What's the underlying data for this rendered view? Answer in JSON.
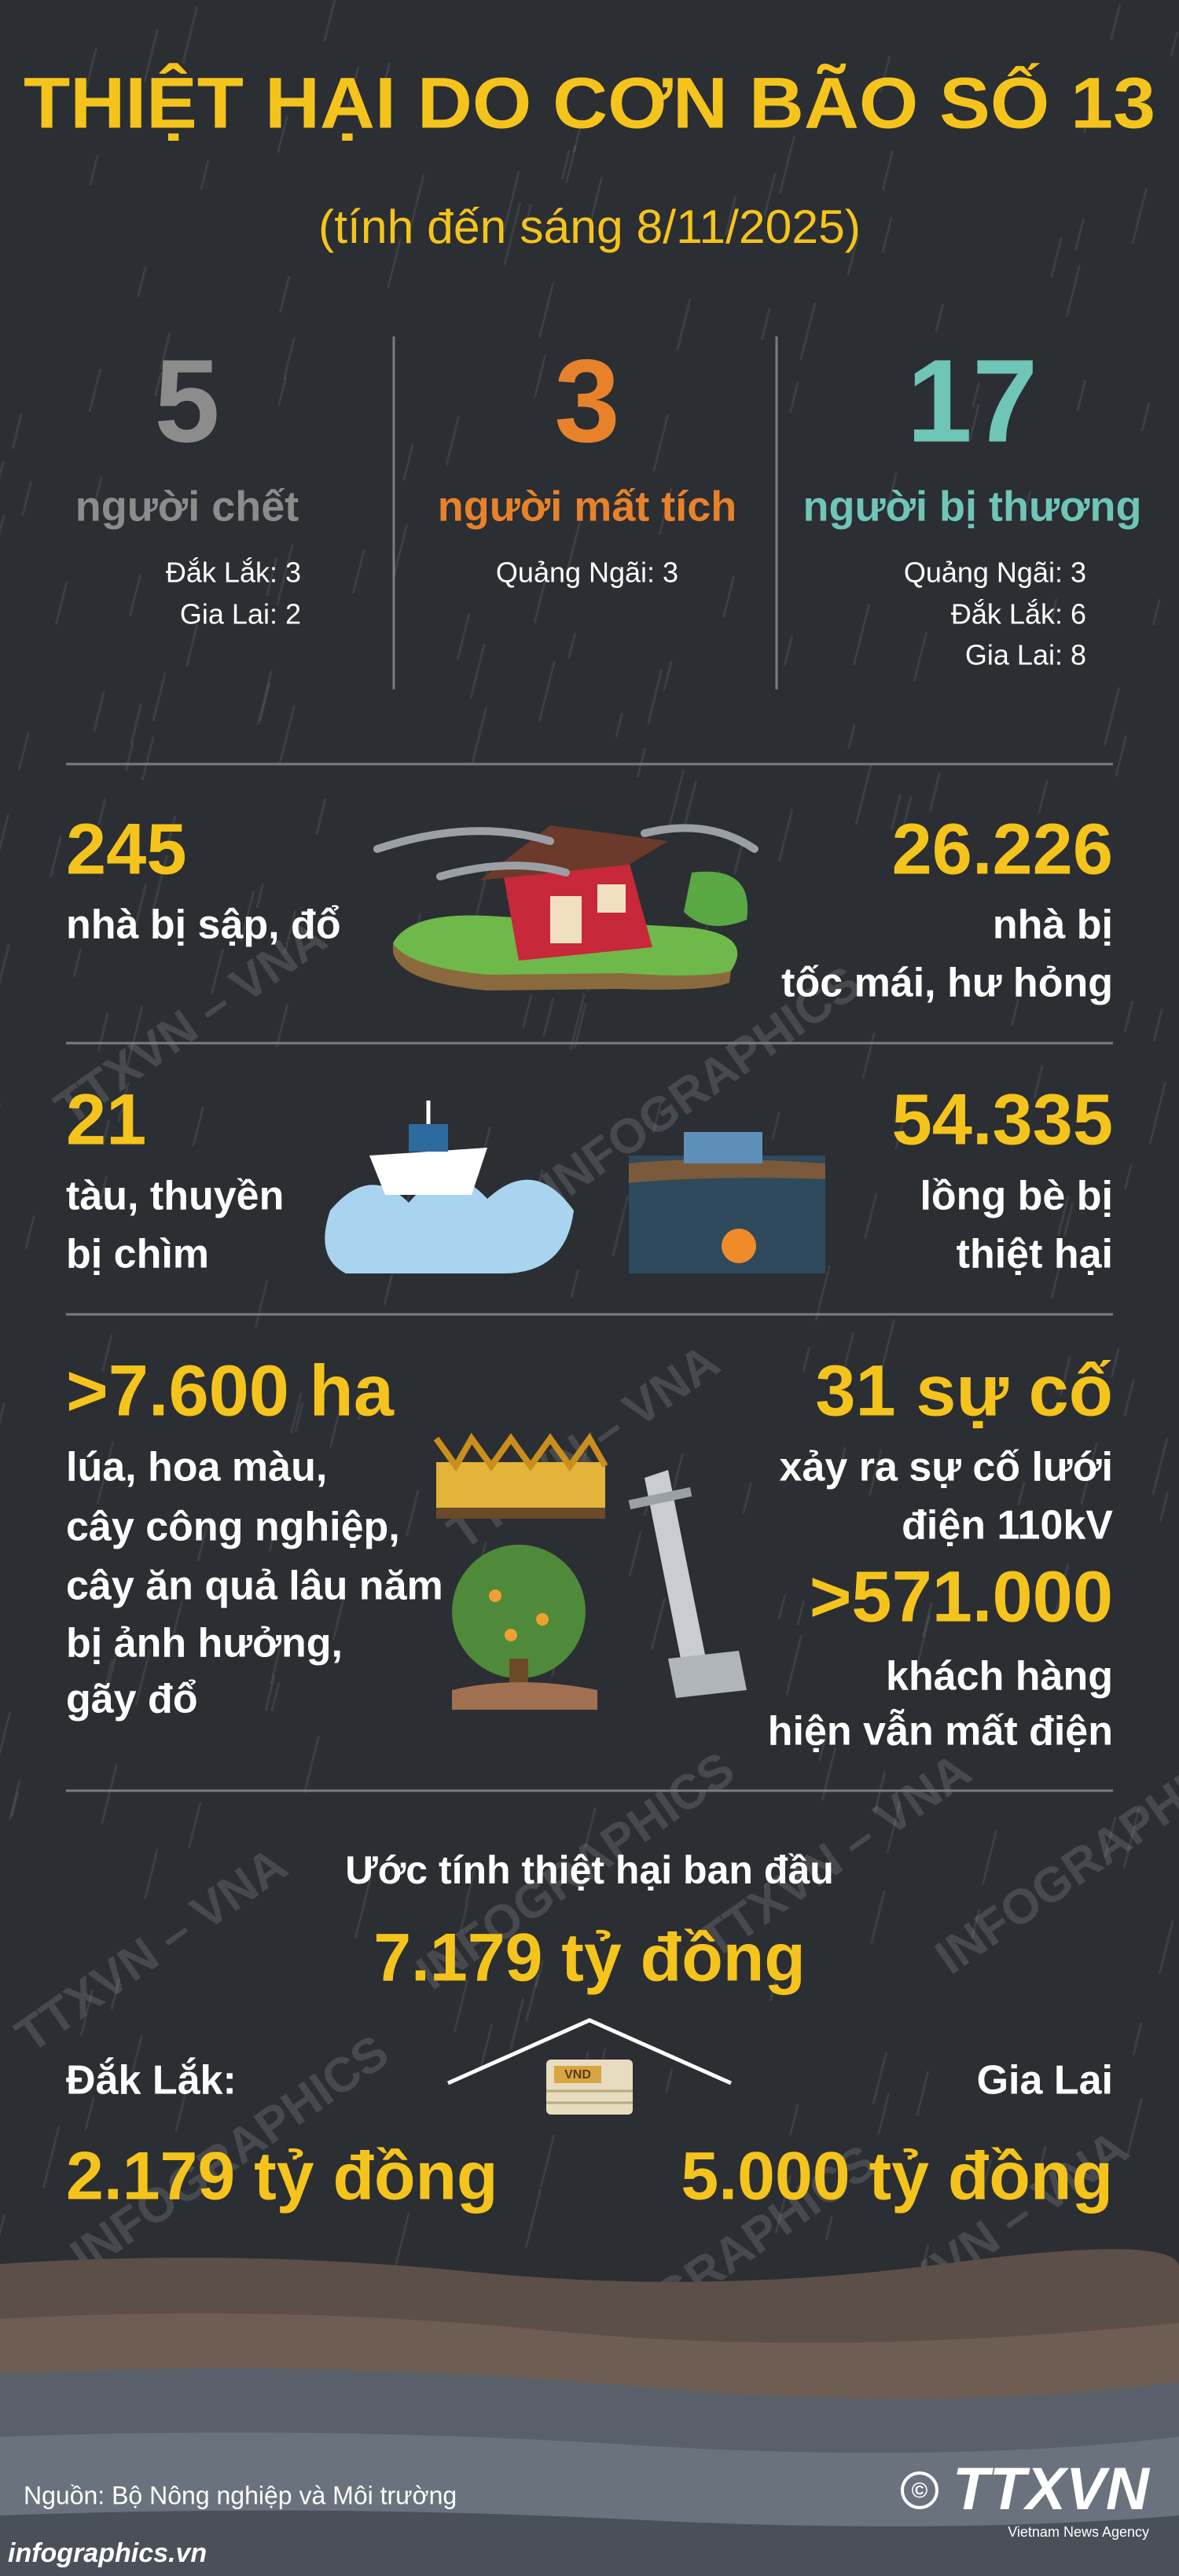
{
  "header": {
    "title": "THIỆT HẠI DO CƠN BÃO SỐ 13",
    "subtitle": "(tính đến sáng 8/11/2025)"
  },
  "casualties": [
    {
      "number": "5",
      "label": "người chết",
      "details": [
        "Đắk Lắk: 3",
        "Gia Lai: 2"
      ]
    },
    {
      "number": "3",
      "label": "người mất tích",
      "details": [
        "Quảng Ngãi: 3"
      ]
    },
    {
      "number": "17",
      "label": "người bị thương",
      "details": [
        "Quảng Ngãi: 3",
        "Đắk Lắk: 6",
        "Gia Lai: 8"
      ]
    }
  ],
  "rows": [
    {
      "left": {
        "value": "245",
        "lines": [
          "nhà bị sập, đổ"
        ]
      },
      "right": [
        {
          "value": "26.226",
          "lines": [
            "nhà bị",
            "tốc mái, hư hỏng"
          ]
        }
      ]
    },
    {
      "left": {
        "value": "21",
        "lines": [
          "tàu, thuyền",
          "bị chìm"
        ]
      },
      "right": [
        {
          "value": "54.335",
          "lines": [
            "lồng bè bị",
            "thiệt hại"
          ]
        }
      ]
    },
    {
      "left": {
        "value": ">7.600 ha",
        "lines": [
          "lúa, hoa màu,",
          "cây công nghiệp,",
          "cây ăn quả lâu năm",
          "bị ảnh hưởng,",
          "gãy đổ"
        ]
      },
      "right": [
        {
          "value": "31 sự cố",
          "lines": [
            "xảy ra sự cố lưới",
            "điện 110kV"
          ]
        },
        {
          "value": ">571.000",
          "lines": [
            "khách hàng",
            "hiện vẫn mất điện"
          ]
        }
      ]
    }
  ],
  "estimate": {
    "label": "Ước tính thiệt hại ban đầu",
    "total": "7.179 tỷ đồng",
    "money_tag": "VND",
    "regions": [
      {
        "name": "Đắk Lắk:",
        "amount": "2.179 tỷ đồng"
      },
      {
        "name": "Gia Lai",
        "amount": "5.000 tỷ đồng"
      }
    ]
  },
  "watermarks": [
    "TTXVN – VNA",
    "INFOGRAPHICS"
  ],
  "footer": {
    "source": "Nguồn: Bộ Nông nghiệp và Môi trường",
    "website": "infographics.vn",
    "logo": "TTXVN",
    "agency": "Vietnam News Agency"
  }
}
